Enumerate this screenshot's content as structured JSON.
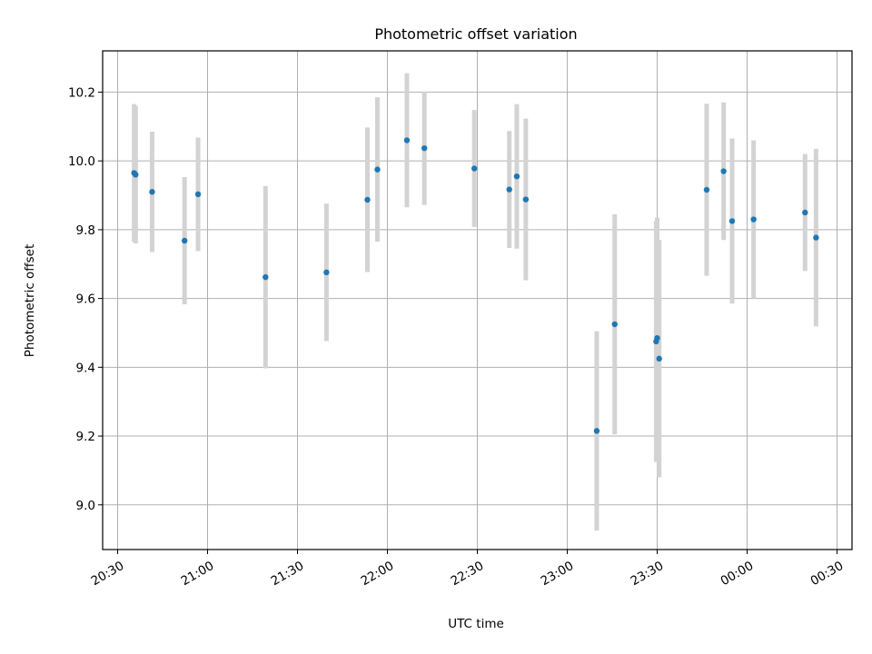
{
  "chart_data": {
    "type": "scatter",
    "title": "Photometric offset variation",
    "xlabel": "UTC time",
    "ylabel": "Photometric offset",
    "xlim": [
      "2000-01-01T20:25",
      "2000-01-02T00:35"
    ],
    "ylim": [
      8.87,
      10.32
    ],
    "x_ticks": [
      "2000-01-01T20:30",
      "2000-01-01T21:00",
      "2000-01-01T21:30",
      "2000-01-01T22:00",
      "2000-01-01T22:30",
      "2000-01-01T23:00",
      "2000-01-01T23:30",
      "2000-01-02T00:00",
      "2000-01-02T00:30"
    ],
    "x_tick_labels": [
      "20:30",
      "21:00",
      "21:30",
      "22:00",
      "22:30",
      "23:00",
      "23:30",
      "00:00",
      "00:30"
    ],
    "y_ticks": [
      9.0,
      9.2,
      9.4,
      9.6,
      9.8,
      10.0,
      10.2
    ],
    "y_tick_labels": [
      "9.0",
      "9.2",
      "9.4",
      "9.6",
      "9.8",
      "10.0",
      "10.2"
    ],
    "grid": true,
    "marker_color": "#1f77b4",
    "errorbar_color": "#d3d3d3",
    "points": [
      {
        "x": "2000-01-01T20:35:30",
        "y": 9.965,
        "err": 0.2
      },
      {
        "x": "2000-01-01T20:36:00",
        "y": 9.96,
        "err": 0.2
      },
      {
        "x": "2000-01-01T20:41:30",
        "y": 9.91,
        "err": 0.175
      },
      {
        "x": "2000-01-01T20:52:20",
        "y": 9.768,
        "err": 0.185
      },
      {
        "x": "2000-01-01T20:56:50",
        "y": 9.903,
        "err": 0.165
      },
      {
        "x": "2000-01-01T21:19:20",
        "y": 9.662,
        "err": 0.265
      },
      {
        "x": "2000-01-01T21:39:40",
        "y": 9.676,
        "err": 0.2
      },
      {
        "x": "2000-01-01T21:53:20",
        "y": 9.887,
        "err": 0.21
      },
      {
        "x": "2000-01-01T21:56:40",
        "y": 9.975,
        "err": 0.21
      },
      {
        "x": "2000-01-01T22:06:30",
        "y": 10.06,
        "err": 0.195
      },
      {
        "x": "2000-01-01T22:12:20",
        "y": 10.037,
        "err": 0.165
      },
      {
        "x": "2000-01-01T22:29:00",
        "y": 9.978,
        "err": 0.17
      },
      {
        "x": "2000-01-01T22:40:40",
        "y": 9.917,
        "err": 0.17
      },
      {
        "x": "2000-01-01T22:43:10",
        "y": 9.955,
        "err": 0.21
      },
      {
        "x": "2000-01-01T22:46:10",
        "y": 9.888,
        "err": 0.235
      },
      {
        "x": "2000-01-01T23:09:50",
        "y": 9.215,
        "err": 0.29
      },
      {
        "x": "2000-01-01T23:15:50",
        "y": 9.525,
        "err": 0.32
      },
      {
        "x": "2000-01-01T23:29:40",
        "y": 9.475,
        "err": 0.35
      },
      {
        "x": "2000-01-01T23:30:00",
        "y": 9.485,
        "err": 0.35
      },
      {
        "x": "2000-01-01T23:30:40",
        "y": 9.425,
        "err": 0.345
      },
      {
        "x": "2000-01-01T23:46:30",
        "y": 9.916,
        "err": 0.25
      },
      {
        "x": "2000-01-01T23:52:10",
        "y": 9.97,
        "err": 0.2
      },
      {
        "x": "2000-01-01T23:55:00",
        "y": 9.825,
        "err": 0.24
      },
      {
        "x": "2000-01-02T00:02:10",
        "y": 9.83,
        "err": 0.23
      },
      {
        "x": "2000-01-02T00:19:20",
        "y": 9.85,
        "err": 0.17
      },
      {
        "x": "2000-01-02T00:23:00",
        "y": 9.777,
        "err": 0.258
      }
    ]
  }
}
